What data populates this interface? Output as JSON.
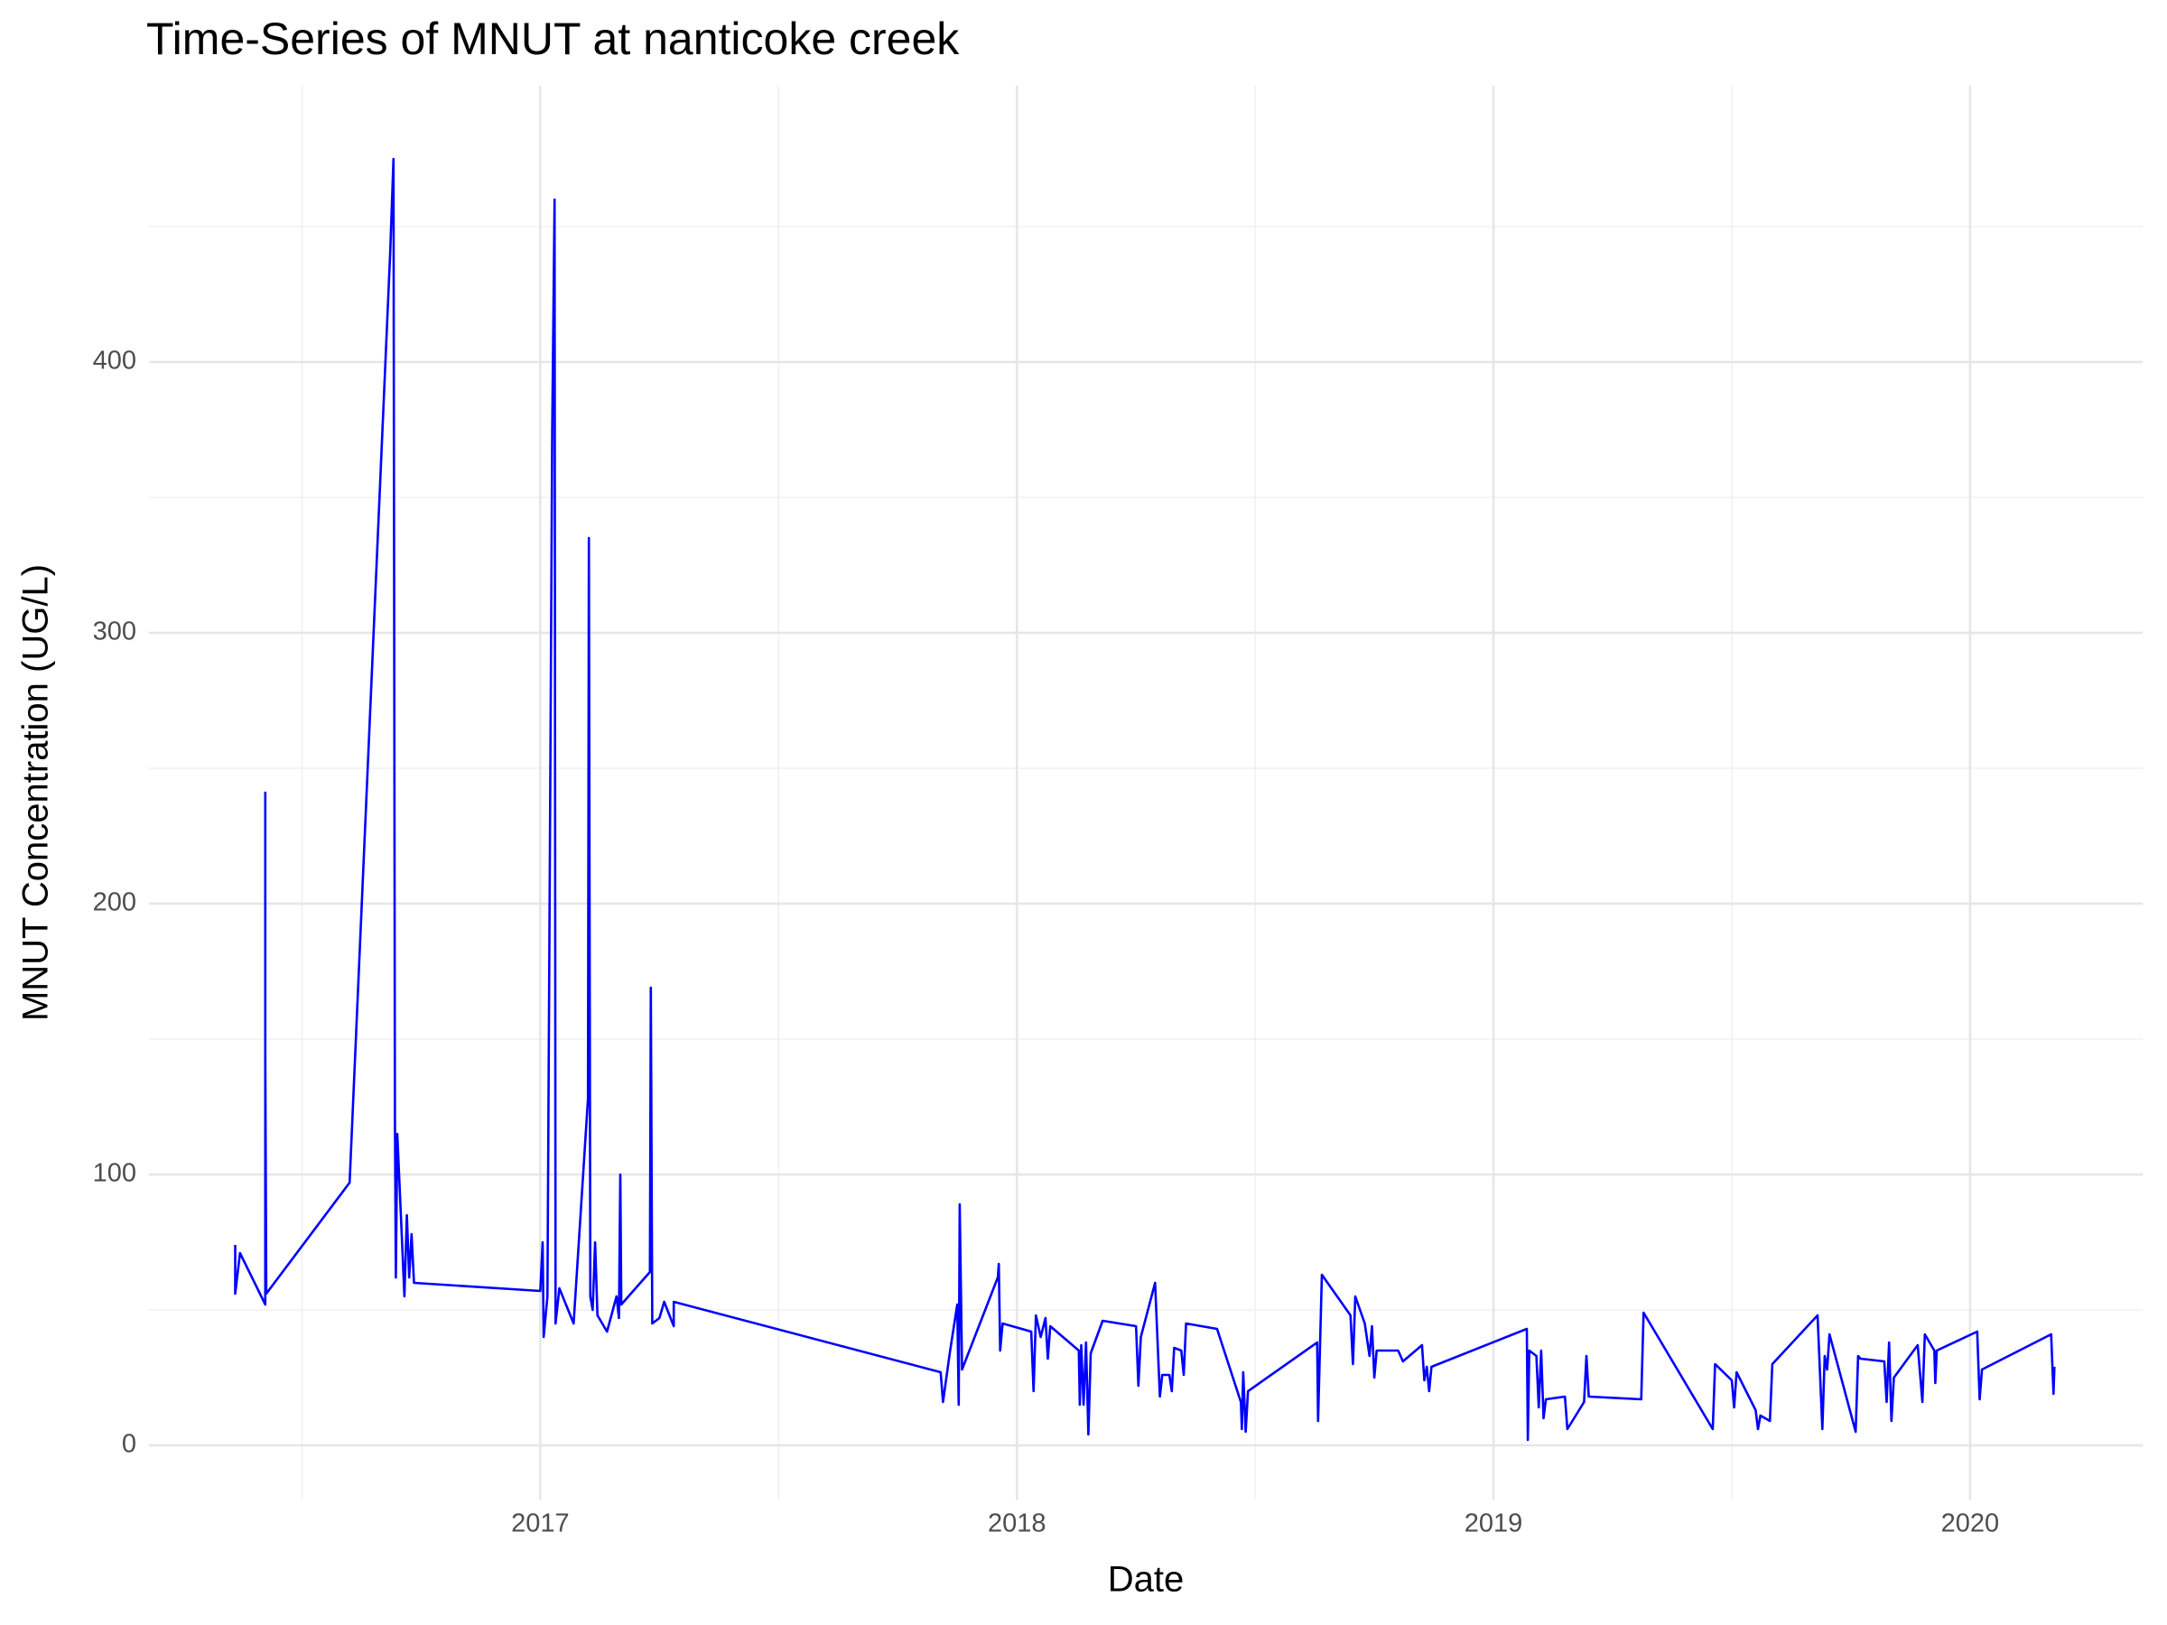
{
  "chart_data": {
    "type": "line",
    "title": "Time-Series of MNUT at nanticoke creek",
    "x_label": "Date",
    "y_label": "MNUT Concentration (UG/L)",
    "color": "#0000ff",
    "grid": true,
    "xlim": [
      2016.179,
      2020.362
    ],
    "ylim": [
      -20,
      502
    ],
    "xticks": [
      2017,
      2018,
      2019,
      2020
    ],
    "yticks": [
      0,
      100,
      200,
      300,
      400
    ],
    "x": [
      2016.36,
      2016.36,
      2016.37,
      2016.423,
      2016.423,
      2016.423,
      2016.425,
      2016.6,
      2016.685,
      2016.692,
      2016.695,
      2016.697,
      2016.7,
      2016.71,
      2016.715,
      2016.72,
      2016.725,
      2016.73,
      2016.735,
      2017.0,
      2017.005,
      2017.007,
      2017.015,
      2017.025,
      2017.03,
      2017.032,
      2017.04,
      2017.07,
      2017.1,
      2017.102,
      2017.105,
      2017.11,
      2017.115,
      2017.12,
      2017.14,
      2017.16,
      2017.165,
      2017.168,
      2017.17,
      2017.23,
      2017.232,
      2017.235,
      2017.25,
      2017.26,
      2017.28,
      2017.28,
      2017.84,
      2017.845,
      2017.86,
      2017.875,
      2017.878,
      2017.88,
      2017.885,
      2017.96,
      2017.962,
      2017.965,
      2017.97,
      2018.03,
      2018.035,
      2018.04,
      2018.05,
      2018.06,
      2018.065,
      2018.07,
      2018.13,
      2018.132,
      2018.135,
      2018.14,
      2018.145,
      2018.15,
      2018.155,
      2018.18,
      2018.25,
      2018.255,
      2018.26,
      2018.29,
      2018.3,
      2018.305,
      2018.32,
      2018.325,
      2018.33,
      2018.345,
      2018.35,
      2018.355,
      2018.42,
      2018.47,
      2018.472,
      2018.475,
      2018.48,
      2018.485,
      2018.63,
      2018.632,
      2018.64,
      2018.7,
      2018.705,
      2018.71,
      2018.73,
      2018.74,
      2018.745,
      2018.75,
      2018.755,
      2018.8,
      2018.81,
      2018.85,
      2018.855,
      2018.86,
      2018.865,
      2018.87,
      2019.07,
      2019.072,
      2019.075,
      2019.09,
      2019.095,
      2019.1,
      2019.105,
      2019.11,
      2019.15,
      2019.155,
      2019.19,
      2019.195,
      2019.2,
      2019.31,
      2019.315,
      2019.46,
      2019.465,
      2019.5,
      2019.505,
      2019.51,
      2019.55,
      2019.555,
      2019.56,
      2019.58,
      2019.585,
      2019.68,
      2019.69,
      2019.695,
      2019.7,
      2019.705,
      2019.76,
      2019.765,
      2019.77,
      2019.82,
      2019.825,
      2019.83,
      2019.835,
      2019.84,
      2019.89,
      2019.9,
      2019.905,
      2019.925,
      2019.927,
      2019.93,
      2020.015,
      2020.02,
      2020.025,
      2020.17,
      2020.175,
      2020.177
    ],
    "values": [
      74,
      56,
      71,
      52,
      241,
      145,
      56,
      97,
      440,
      475,
      120,
      62,
      115,
      75,
      55,
      85,
      62,
      78,
      60,
      57,
      75,
      40,
      55,
      375,
      460,
      45,
      58,
      45,
      128,
      335,
      55,
      50,
      75,
      48,
      42,
      55,
      47,
      100,
      52,
      64,
      169,
      45,
      47,
      53,
      44,
      53,
      27,
      16,
      35,
      52,
      15,
      89,
      28,
      62,
      67,
      35,
      45,
      42,
      20,
      48,
      40,
      47,
      32,
      44,
      35,
      15,
      37,
      15,
      38,
      4,
      34,
      46,
      44,
      22,
      40,
      60,
      18,
      26,
      26,
      20,
      36,
      35,
      26,
      45,
      43,
      16,
      6,
      27,
      5,
      20,
      38,
      9,
      63,
      48,
      30,
      55,
      45,
      33,
      44,
      25,
      35,
      35,
      31,
      37,
      24,
      29,
      20,
      29,
      43,
      2,
      35,
      33,
      14,
      35,
      10,
      17,
      18,
      6,
      16,
      33,
      18,
      17,
      49,
      6,
      30,
      24,
      14,
      27,
      13,
      6,
      11,
      9,
      30,
      48,
      6,
      33,
      28,
      41,
      5,
      33,
      32,
      31,
      16,
      38,
      9,
      25,
      37,
      16,
      41,
      35,
      23,
      35,
      42,
      17,
      28,
      41,
      19,
      29
    ]
  }
}
